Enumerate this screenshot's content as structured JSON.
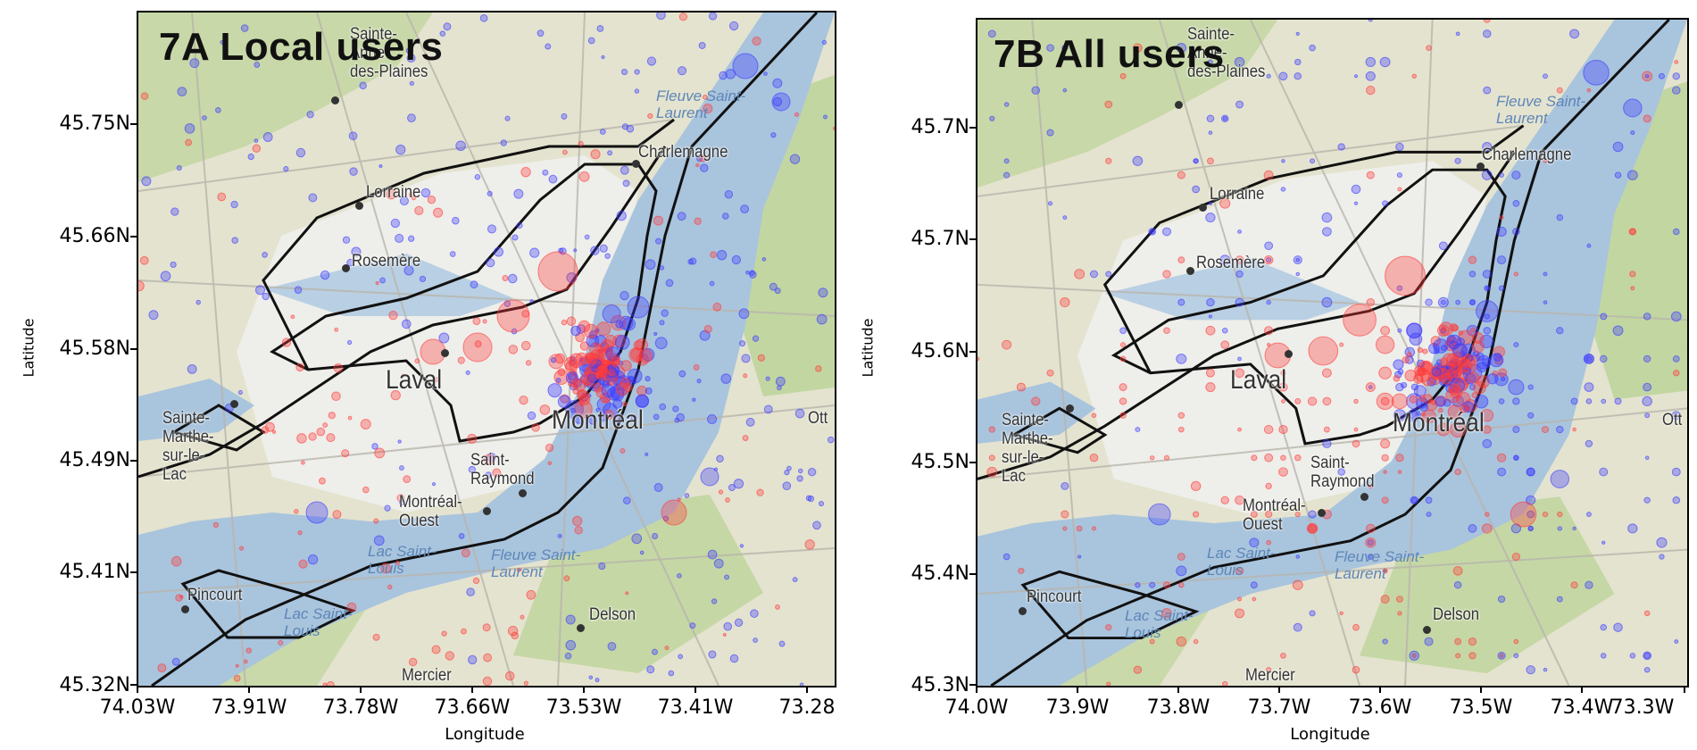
{
  "panels": [
    {
      "id": "a",
      "title": "7A Local users",
      "xlabel": "Longitude",
      "ylabel": "Latitude",
      "xticks": [
        "74.03W",
        "73.91W",
        "73.78W",
        "73.66W",
        "73.53W",
        "73.41W",
        "73.28"
      ],
      "yticks": [
        "45.75N",
        "45.66N",
        "45.58N",
        "45.49N",
        "45.41N",
        "45.32N"
      ],
      "places": [
        {
          "name": "Sainte-\nAnne-\ndes-Plaines",
          "big": false
        },
        {
          "name": "Lorraine",
          "big": false
        },
        {
          "name": "Rosemère",
          "big": false
        },
        {
          "name": "Charlemagne",
          "big": false
        },
        {
          "name": "Laval",
          "big": true
        },
        {
          "name": "Montréal",
          "big": true
        },
        {
          "name": "Sainte-\nMarthe-\nsur-le-\nLac",
          "big": false
        },
        {
          "name": "Saint-\nRaymond",
          "big": false
        },
        {
          "name": "Montréal-\nOuest",
          "big": false
        },
        {
          "name": "Pincourt",
          "big": false
        },
        {
          "name": "Delson",
          "big": false
        },
        {
          "name": "Mercier",
          "big": false
        },
        {
          "name": "Ott",
          "big": false
        }
      ],
      "water_labels": [
        "Fleuve Saint-\nLaurent",
        "Lac Saint-\nLouis",
        "Fleuve Saint-\nLaurent",
        "Lac Saint-\nLouis"
      ]
    },
    {
      "id": "b",
      "title": "7B All users",
      "xlabel": "Longitude",
      "ylabel": "Latitude",
      "xticks": [
        "74.0W",
        "73.9W",
        "73.8W",
        "73.7W",
        "73.6W",
        "73.5W",
        "73.4W",
        "73.3W"
      ],
      "yticks": [
        "45.7N",
        "45.7N",
        "45.6N",
        "45.5N",
        "45.4N",
        "45.3N"
      ],
      "places": [
        {
          "name": "Sainte-\nAnne-\ndes-Plaines",
          "big": false
        },
        {
          "name": "Lorraine",
          "big": false
        },
        {
          "name": "Rosemère",
          "big": false
        },
        {
          "name": "Charlemagne",
          "big": false
        },
        {
          "name": "Laval",
          "big": true
        },
        {
          "name": "Montréal",
          "big": true
        },
        {
          "name": "Sainte-\nMarthe-\nsur-le-\nLac",
          "big": false
        },
        {
          "name": "Saint-\nRaymond",
          "big": false
        },
        {
          "name": "Montréal-\nOuest",
          "big": false
        },
        {
          "name": "Pincourt",
          "big": false
        },
        {
          "name": "Delson",
          "big": false
        },
        {
          "name": "Mercier",
          "big": false
        },
        {
          "name": "Ott",
          "big": false
        }
      ],
      "water_labels": [
        "Fleuve Saint-\nLaurent",
        "Lac Saint-\nLouis",
        "Fleuve Saint-\nLaurent",
        "Lac Saint-\nLouis"
      ]
    }
  ],
  "colors": {
    "local_marker": "#ff3b3b",
    "visitor_marker": "#3b3bff",
    "land": "#e4e3cf",
    "urban": "#eeeeea",
    "water": "#a9c4dd",
    "forest": "#b5cf9a",
    "contour": "#111111"
  }
}
